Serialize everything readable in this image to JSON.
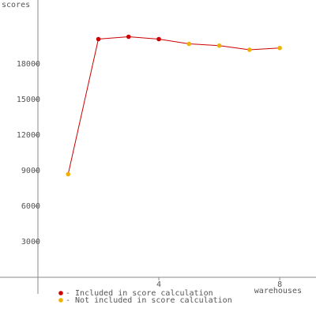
{
  "chart_data": {
    "type": "line",
    "y_label": "scores",
    "x_label": "warehouses",
    "x": [
      1,
      2,
      3,
      4,
      5,
      6,
      7,
      8
    ],
    "values": [
      8700,
      20100,
      20300,
      20100,
      19700,
      19550,
      19200,
      19350
    ],
    "line_color": "#cc0000",
    "point_groups": [
      1,
      0,
      0,
      0,
      1,
      1,
      1,
      1
    ],
    "legend": [
      {
        "name": "- Included in score calculation",
        "color": "#cc0000"
      },
      {
        "name": "- Not included in score calculation",
        "color": "#f0b000"
      }
    ],
    "xlim": [
      0,
      9.2
    ],
    "ylim": [
      0,
      23400
    ],
    "xticks": [
      4,
      8
    ],
    "yticks": [
      3000,
      6000,
      9000,
      12000,
      15000,
      18000
    ]
  }
}
